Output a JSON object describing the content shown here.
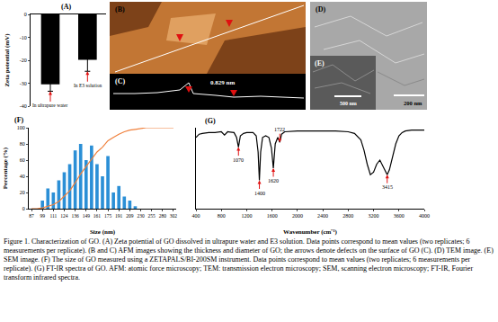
{
  "chart_data": [
    {
      "type": "bar",
      "title": "(A)",
      "categories": [
        "In ultrapure water",
        "In E3 solution"
      ],
      "values": [
        -30.5,
        -19.8
      ],
      "errors": [
        3,
        5
      ],
      "color": "#000000",
      "y_label": "Zeta potential (mV)",
      "ylim": [
        -40,
        0
      ],
      "yticks": [
        0,
        -10,
        -20,
        -30,
        -40
      ],
      "tick_labels": "y"
    },
    {
      "type": "bar",
      "title": "(F)",
      "categories": [
        "87",
        null,
        "99",
        null,
        "111",
        null,
        "124",
        null,
        "136",
        null,
        "149",
        null,
        "161",
        null,
        "175",
        null,
        "191",
        null,
        "209",
        null,
        "230",
        null,
        "255",
        null,
        "280",
        null,
        "302"
      ],
      "series": [
        {
          "type": "bar",
          "color": "#2b8fd6",
          "values": [
            0,
            0,
            10,
            25,
            20,
            35,
            45,
            55,
            72,
            80,
            60,
            78,
            55,
            40,
            65,
            20,
            28,
            15,
            10,
            3,
            0,
            0,
            0,
            0,
            0,
            0,
            0
          ]
        },
        {
          "type": "line",
          "color": "#f0803c",
          "values": [
            0,
            0,
            1,
            3,
            5,
            9,
            15,
            22,
            32,
            43,
            52,
            61,
            70,
            76,
            84,
            88,
            92,
            95,
            97,
            98,
            99,
            100,
            100,
            100,
            100,
            100,
            100
          ]
        }
      ],
      "x_label": "Size (nm)",
      "y_label": "Percentage (%)",
      "ylim": [
        0,
        100
      ],
      "yticks": [
        0,
        20,
        40,
        60,
        80,
        100
      ]
    },
    {
      "type": "line",
      "title": "(G)",
      "x": [
        400,
        450,
        500,
        600,
        700,
        800,
        850,
        900,
        1000,
        1040,
        1070,
        1100,
        1150,
        1200,
        1300,
        1350,
        1380,
        1400,
        1420,
        1450,
        1500,
        1550,
        1590,
        1620,
        1650,
        1690,
        1722,
        1750,
        1800,
        2000,
        2200,
        2400,
        2600,
        2800,
        2900,
        3000,
        3050,
        3100,
        3150,
        3200,
        3250,
        3300,
        3350,
        3415,
        3450,
        3500,
        3550,
        3600,
        3650,
        3700,
        3800,
        4000
      ],
      "values": [
        88,
        92,
        93,
        94,
        94,
        95,
        91,
        95,
        94,
        88,
        76,
        90,
        93,
        94,
        94,
        90,
        70,
        35,
        70,
        88,
        90,
        88,
        75,
        50,
        80,
        88,
        82,
        92,
        95,
        96,
        96,
        96,
        96,
        95,
        93,
        85,
        72,
        55,
        42,
        45,
        55,
        60,
        52,
        42,
        48,
        65,
        80,
        90,
        94,
        96,
        97,
        97
      ],
      "color": "#000000",
      "x_label": "Wavenumber (cm⁻¹)",
      "xlim": [
        400,
        4000
      ],
      "xticks": [
        400,
        800,
        1200,
        1600,
        2000,
        2400,
        2800,
        3200,
        3600,
        4000
      ],
      "ylim": [
        0,
        100
      ],
      "tick_labels": "x",
      "annotations": [
        {
          "x": 1070,
          "text": "1070"
        },
        {
          "x": 1400,
          "text": "1400"
        },
        {
          "x": 1620,
          "text": "1620"
        },
        {
          "x": 1722,
          "text": "1722"
        },
        {
          "x": 3415,
          "text": "3415"
        }
      ]
    }
  ],
  "images": [
    {
      "panel": "(B)"
    },
    {
      "panel": "(C)",
      "text": "0.829 nm"
    },
    {
      "panel": "(D)",
      "scale_bar": "200 nm"
    },
    {
      "panel": "(E)",
      "scale_bar": "500 nm"
    }
  ],
  "caption": "Figure 1. Characterization of GO. (A) Zeta potential of GO dissolved in ultrapure water and E3 solution. Data points correspond to mean values (two replicates; 6 measurements per replicate). (B and C) AFM images showing the thickness and diameter of GO; the arrows denote defects on the surface of GO (C). (D) TEM image. (E) SEM image. (F) The size of GO measured using a ZETAPALS/BI-200SM instrument. Data points correspond to mean values (two replicates; 6 measurements per replicate). (G) FT-IR spectra of GO. AFM: atomic force microscopy; TEM: transmission electron microscopy; SEM, scanning electron microscopy; FT-IR, Fourier transform infrared spectra."
}
